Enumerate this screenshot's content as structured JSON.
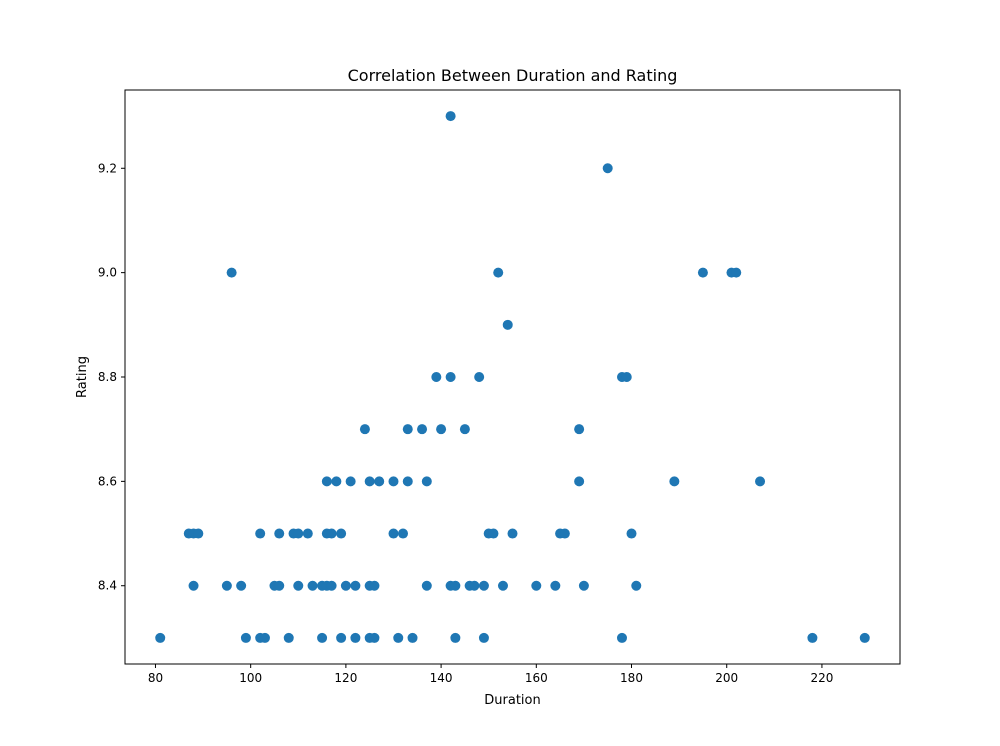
{
  "chart_data": {
    "type": "scatter",
    "title": "Correlation Between Duration and Rating",
    "xlabel": "Duration",
    "ylabel": "Rating",
    "xlim": [
      73.6,
      236.4
    ],
    "ylim": [
      8.25,
      9.35
    ],
    "xticks": [
      80,
      100,
      120,
      140,
      160,
      180,
      200,
      220
    ],
    "yticks": [
      8.4,
      8.6,
      8.8,
      9.0,
      9.2
    ],
    "ytick_labels": [
      "8.4",
      "8.6",
      "8.8",
      "9.0",
      "9.2"
    ],
    "grid": false,
    "marker_color": "#1f77b4",
    "points": [
      [
        81,
        8.3
      ],
      [
        87,
        8.5
      ],
      [
        88,
        8.5
      ],
      [
        88,
        8.4
      ],
      [
        89,
        8.5
      ],
      [
        95,
        8.4
      ],
      [
        96,
        9.0
      ],
      [
        98,
        8.4
      ],
      [
        99,
        8.3
      ],
      [
        102,
        8.5
      ],
      [
        102,
        8.3
      ],
      [
        103,
        8.3
      ],
      [
        105,
        8.4
      ],
      [
        106,
        8.5
      ],
      [
        106,
        8.4
      ],
      [
        108,
        8.3
      ],
      [
        109,
        8.5
      ],
      [
        110,
        8.5
      ],
      [
        110,
        8.4
      ],
      [
        112,
        8.5
      ],
      [
        113,
        8.4
      ],
      [
        115,
        8.4
      ],
      [
        115,
        8.3
      ],
      [
        116,
        8.6
      ],
      [
        116,
        8.5
      ],
      [
        116,
        8.4
      ],
      [
        117,
        8.5
      ],
      [
        117,
        8.4
      ],
      [
        118,
        8.6
      ],
      [
        119,
        8.5
      ],
      [
        119,
        8.3
      ],
      [
        120,
        8.4
      ],
      [
        121,
        8.6
      ],
      [
        122,
        8.4
      ],
      [
        122,
        8.3
      ],
      [
        124,
        8.7
      ],
      [
        125,
        8.6
      ],
      [
        125,
        8.4
      ],
      [
        125,
        8.3
      ],
      [
        126,
        8.4
      ],
      [
        126,
        8.3
      ],
      [
        127,
        8.6
      ],
      [
        130,
        8.6
      ],
      [
        130,
        8.5
      ],
      [
        131,
        8.3
      ],
      [
        132,
        8.5
      ],
      [
        133,
        8.7
      ],
      [
        133,
        8.6
      ],
      [
        134,
        8.3
      ],
      [
        136,
        8.7
      ],
      [
        137,
        8.6
      ],
      [
        137,
        8.4
      ],
      [
        139,
        8.8
      ],
      [
        140,
        8.7
      ],
      [
        142,
        9.3
      ],
      [
        142,
        8.8
      ],
      [
        142,
        8.4
      ],
      [
        143,
        8.4
      ],
      [
        143,
        8.3
      ],
      [
        145,
        8.7
      ],
      [
        146,
        8.4
      ],
      [
        147,
        8.4
      ],
      [
        148,
        8.8
      ],
      [
        149,
        8.4
      ],
      [
        149,
        8.3
      ],
      [
        150,
        8.5
      ],
      [
        151,
        8.5
      ],
      [
        152,
        9.0
      ],
      [
        153,
        8.4
      ],
      [
        154,
        8.9
      ],
      [
        155,
        8.5
      ],
      [
        160,
        8.4
      ],
      [
        164,
        8.4
      ],
      [
        165,
        8.5
      ],
      [
        166,
        8.5
      ],
      [
        169,
        8.7
      ],
      [
        169,
        8.6
      ],
      [
        170,
        8.4
      ],
      [
        175,
        9.2
      ],
      [
        178,
        8.8
      ],
      [
        178,
        8.3
      ],
      [
        179,
        8.8
      ],
      [
        180,
        8.5
      ],
      [
        181,
        8.4
      ],
      [
        189,
        8.6
      ],
      [
        195,
        9.0
      ],
      [
        201,
        9.0
      ],
      [
        202,
        9.0
      ],
      [
        207,
        8.6
      ],
      [
        218,
        8.3
      ],
      [
        229,
        8.3
      ]
    ]
  }
}
